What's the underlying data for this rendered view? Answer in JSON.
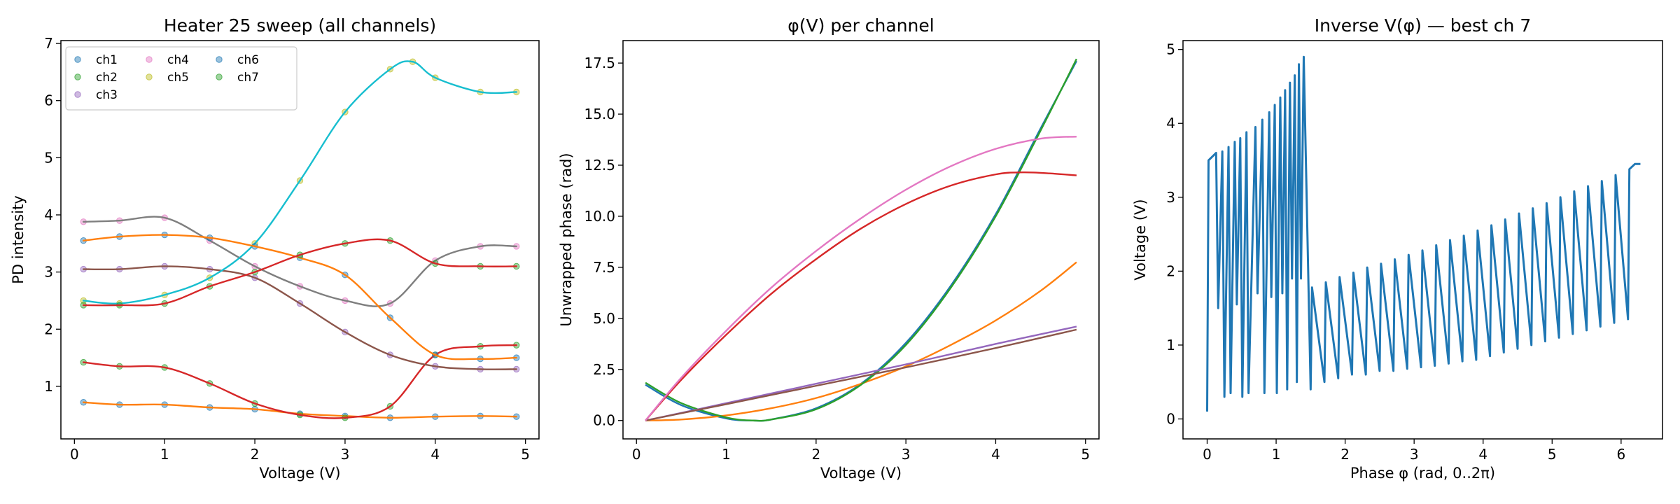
{
  "chart_data": [
    {
      "type": "scatter",
      "title": "Heater 25 sweep (all channels)",
      "xlabel": "Voltage (V)",
      "ylabel": "PD intensity",
      "xlim": [
        -0.15,
        5.15
      ],
      "ylim": [
        0.08,
        7.05
      ],
      "xticks": [
        0,
        1,
        2,
        3,
        4,
        5
      ],
      "yticks": [
        1,
        2,
        3,
        4,
        5,
        6,
        7
      ],
      "grid": false,
      "legend": "top-left",
      "legend_entries": [
        "ch1",
        "ch2",
        "ch3",
        "ch4",
        "ch5",
        "ch6",
        "ch7"
      ],
      "series": [
        {
          "name": "ch1",
          "color": "#1f77b4",
          "fit_color": "#ff7f0e",
          "x": [
            0.1,
            0.5,
            1.0,
            1.5,
            2.0,
            2.5,
            3.0,
            3.5,
            4.0,
            4.5,
            4.9
          ],
          "y": [
            0.72,
            0.68,
            0.68,
            0.63,
            0.6,
            0.52,
            0.48,
            0.45,
            0.47,
            0.48,
            0.47
          ]
        },
        {
          "name": "ch2",
          "color": "#2ca02c",
          "fit_color": "#d62728",
          "x": [
            0.1,
            0.5,
            1.0,
            1.5,
            2.0,
            2.5,
            3.0,
            3.5,
            4.0,
            4.5,
            4.9
          ],
          "y": [
            1.42,
            1.35,
            1.33,
            1.05,
            0.7,
            0.5,
            0.45,
            0.65,
            1.55,
            1.7,
            1.72
          ]
        },
        {
          "name": "ch3",
          "color": "#9467bd",
          "fit_color": "#8c564b",
          "x": [
            0.1,
            0.5,
            1.0,
            1.5,
            2.0,
            2.5,
            3.0,
            3.5,
            4.0,
            4.5,
            4.9
          ],
          "y": [
            3.05,
            3.05,
            3.1,
            3.05,
            2.9,
            2.45,
            1.95,
            1.55,
            1.35,
            1.3,
            1.3
          ]
        },
        {
          "name": "ch4",
          "color": "#e377c2",
          "fit_color": "#7f7f7f",
          "x": [
            0.1,
            0.5,
            1.0,
            1.5,
            2.0,
            2.5,
            3.0,
            3.5,
            4.0,
            4.5,
            4.9
          ],
          "y": [
            3.88,
            3.9,
            3.95,
            3.55,
            3.1,
            2.75,
            2.5,
            2.45,
            3.2,
            3.45,
            3.45
          ]
        },
        {
          "name": "ch5",
          "color": "#bcbd22",
          "fit_color": "#17becf",
          "x": [
            0.1,
            0.5,
            1.0,
            1.5,
            2.0,
            2.5,
            3.0,
            3.5,
            3.75,
            4.0,
            4.5,
            4.9
          ],
          "y": [
            2.5,
            2.45,
            2.6,
            2.9,
            3.5,
            4.6,
            5.8,
            6.55,
            6.68,
            6.4,
            6.15,
            6.15
          ]
        },
        {
          "name": "ch6",
          "color": "#1f77b4",
          "fit_color": "#ff7f0e",
          "x": [
            0.1,
            0.5,
            1.0,
            1.5,
            2.0,
            2.5,
            3.0,
            3.5,
            4.0,
            4.5,
            4.9
          ],
          "y": [
            3.55,
            3.62,
            3.65,
            3.6,
            3.45,
            3.25,
            2.95,
            2.2,
            1.55,
            1.48,
            1.5
          ]
        },
        {
          "name": "ch7",
          "color": "#2ca02c",
          "fit_color": "#d62728",
          "x": [
            0.1,
            0.5,
            1.0,
            1.5,
            2.0,
            2.5,
            3.0,
            3.5,
            4.0,
            4.5,
            4.9
          ],
          "y": [
            2.42,
            2.42,
            2.45,
            2.75,
            3.0,
            3.3,
            3.5,
            3.55,
            3.15,
            3.1,
            3.1
          ]
        }
      ]
    },
    {
      "type": "line",
      "title": "φ(V) per channel",
      "xlabel": "Voltage (V)",
      "ylabel": "Unwrapped phase (rad)",
      "xlim": [
        -0.15,
        5.15
      ],
      "ylim": [
        -0.9,
        18.6
      ],
      "xticks": [
        0,
        1,
        2,
        3,
        4,
        5
      ],
      "yticks": [
        0.0,
        2.5,
        5.0,
        7.5,
        10.0,
        12.5,
        15.0,
        17.5
      ],
      "ytick_labels": [
        "0.0",
        "2.5",
        "5.0",
        "7.5",
        "10.0",
        "12.5",
        "15.0",
        "17.5"
      ],
      "grid": false,
      "series": [
        {
          "color": "#1f77b4",
          "x": [
            0.1,
            0.5,
            1.0,
            1.3,
            1.5,
            2.0,
            2.5,
            3.0,
            3.5,
            4.0,
            4.5,
            4.9
          ],
          "y": [
            1.75,
            0.75,
            0.1,
            0.0,
            0.05,
            0.6,
            1.8,
            3.8,
            6.6,
            10.1,
            14.3,
            17.6
          ]
        },
        {
          "color": "#ff7f0e",
          "x": [
            0.1,
            0.5,
            1.0,
            1.5,
            2.0,
            2.5,
            3.0,
            3.5,
            4.0,
            4.5,
            4.9
          ],
          "y": [
            0.0,
            0.05,
            0.25,
            0.6,
            1.1,
            1.8,
            2.65,
            3.7,
            4.9,
            6.35,
            7.75
          ]
        },
        {
          "color": "#2ca02c",
          "x": [
            0.1,
            0.5,
            1.0,
            1.3,
            1.5,
            2.0,
            2.5,
            3.0,
            3.5,
            4.0,
            4.5,
            4.9
          ],
          "y": [
            1.85,
            0.85,
            0.15,
            0.0,
            0.05,
            0.55,
            1.75,
            3.7,
            6.5,
            10.0,
            14.2,
            17.7
          ]
        },
        {
          "color": "#d62728",
          "x": [
            0.1,
            0.5,
            1.0,
            1.5,
            2.0,
            2.5,
            3.0,
            3.5,
            4.0,
            4.3,
            4.6,
            4.9
          ],
          "y": [
            0.0,
            2.0,
            4.2,
            6.2,
            7.9,
            9.4,
            10.6,
            11.5,
            12.05,
            12.15,
            12.1,
            12.0
          ]
        },
        {
          "color": "#9467bd",
          "x": [
            0.1,
            1.0,
            2.0,
            3.0,
            4.0,
            4.9
          ],
          "y": [
            0.0,
            0.85,
            1.8,
            2.75,
            3.75,
            4.6
          ]
        },
        {
          "color": "#8c564b",
          "x": [
            0.1,
            1.0,
            2.0,
            3.0,
            4.0,
            4.9
          ],
          "y": [
            0.0,
            0.8,
            1.7,
            2.6,
            3.55,
            4.45
          ]
        },
        {
          "color": "#e377c2",
          "x": [
            0.1,
            0.5,
            1.0,
            1.5,
            2.0,
            2.5,
            3.0,
            3.5,
            4.0,
            4.5,
            4.9
          ],
          "y": [
            0.0,
            2.1,
            4.4,
            6.5,
            8.3,
            9.9,
            11.3,
            12.45,
            13.3,
            13.8,
            13.9
          ]
        }
      ]
    },
    {
      "type": "line",
      "title": "Inverse V(φ) — best ch 7",
      "xlabel": "Phase φ (rad, 0..2π)",
      "ylabel": "Voltage (V)",
      "xlim": [
        -0.35,
        6.6
      ],
      "ylim": [
        -0.27,
        5.12
      ],
      "xticks": [
        0,
        1,
        2,
        3,
        4,
        5,
        6
      ],
      "yticks": [
        0,
        1,
        2,
        3,
        4,
        5
      ],
      "grid": false,
      "series": [
        {
          "color": "#1f77b4",
          "x": [
            0.0,
            0.02,
            0.13,
            0.16,
            0.22,
            0.25,
            0.31,
            0.34,
            0.4,
            0.43,
            0.48,
            0.51,
            0.57,
            0.6,
            0.7,
            0.73,
            0.8,
            0.83,
            0.9,
            0.93,
            0.98,
            1.01,
            1.06,
            1.09,
            1.13,
            1.16,
            1.2,
            1.23,
            1.27,
            1.3,
            1.33,
            1.36,
            1.4,
            1.5,
            1.52,
            1.7,
            1.72,
            1.9,
            1.92,
            2.1,
            2.12,
            2.3,
            2.32,
            2.5,
            2.52,
            2.7,
            2.72,
            2.9,
            2.92,
            3.1,
            3.12,
            3.3,
            3.32,
            3.5,
            3.52,
            3.7,
            3.72,
            3.9,
            3.92,
            4.1,
            4.12,
            4.3,
            4.32,
            4.5,
            4.52,
            4.7,
            4.72,
            4.9,
            4.92,
            5.1,
            5.12,
            5.3,
            5.32,
            5.5,
            5.52,
            5.7,
            5.72,
            5.9,
            5.92,
            6.1,
            6.12,
            6.2,
            6.28
          ],
          "y": [
            0.1,
            3.5,
            3.6,
            1.5,
            3.62,
            0.3,
            3.68,
            0.35,
            3.75,
            1.55,
            3.8,
            0.3,
            3.88,
            0.35,
            3.95,
            1.7,
            4.05,
            0.35,
            4.15,
            1.65,
            4.25,
            0.35,
            4.35,
            1.7,
            4.45,
            0.4,
            4.55,
            1.9,
            4.65,
            0.5,
            4.8,
            1.9,
            4.9,
            0.4,
            1.78,
            0.5,
            1.85,
            0.55,
            1.92,
            0.6,
            1.98,
            0.6,
            2.05,
            0.65,
            2.1,
            0.65,
            2.16,
            0.68,
            2.22,
            0.7,
            2.28,
            0.72,
            2.35,
            0.75,
            2.42,
            0.78,
            2.48,
            0.8,
            2.55,
            0.85,
            2.62,
            0.9,
            2.7,
            0.95,
            2.78,
            1.0,
            2.85,
            1.05,
            2.92,
            1.1,
            3.0,
            1.15,
            3.08,
            1.2,
            3.15,
            1.25,
            3.22,
            1.3,
            3.3,
            1.35,
            3.38,
            3.45,
            3.45
          ]
        }
      ]
    }
  ]
}
